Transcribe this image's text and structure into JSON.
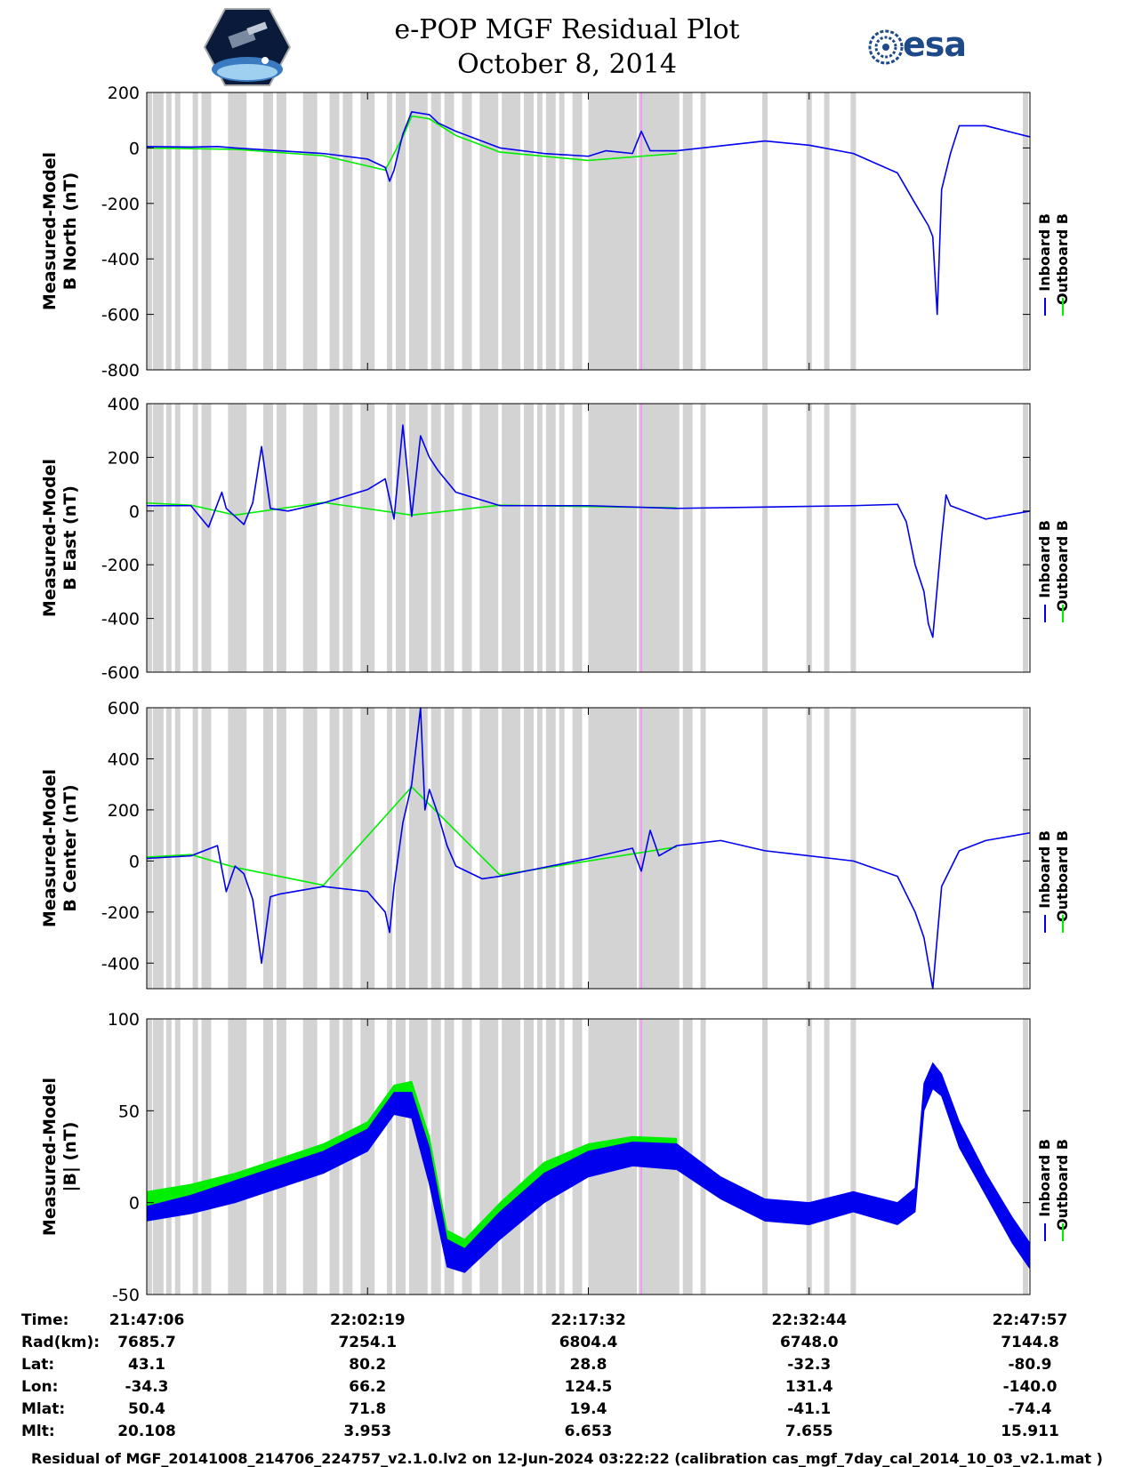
{
  "title": {
    "line1": "e-POP MGF Residual Plot",
    "line2": "October 8, 2014"
  },
  "logos": {
    "left": "cassiope-mission-logo",
    "right_text": "esa"
  },
  "colors": {
    "inboard": "#0000ee",
    "outboard": "#00ee00",
    "gap": "#d3d3d3",
    "marker": "#ff88ff"
  },
  "legend": {
    "inboard": "Inboard B",
    "outboard": "Outboard B"
  },
  "chart_data": [
    {
      "type": "line",
      "ylabel": [
        "Measured-Model",
        "B North (nT)"
      ],
      "ylim": [
        -800,
        200
      ],
      "yticks": [
        200,
        0,
        -200,
        -400,
        -600,
        -800
      ],
      "series": [
        {
          "name": "Inboard B",
          "color": "#0000ee",
          "points": [
            [
              0,
              5
            ],
            [
              0.05,
              3
            ],
            [
              0.08,
              5
            ],
            [
              0.1,
              0
            ],
            [
              0.15,
              -10
            ],
            [
              0.2,
              -20
            ],
            [
              0.25,
              -40
            ],
            [
              0.27,
              -70
            ],
            [
              0.275,
              -120
            ],
            [
              0.28,
              -80
            ],
            [
              0.29,
              50
            ],
            [
              0.3,
              130
            ],
            [
              0.32,
              120
            ],
            [
              0.33,
              90
            ],
            [
              0.35,
              60
            ],
            [
              0.4,
              0
            ],
            [
              0.45,
              -20
            ],
            [
              0.5,
              -30
            ],
            [
              0.52,
              -10
            ],
            [
              0.55,
              -20
            ],
            [
              0.56,
              60
            ],
            [
              0.57,
              -10
            ],
            [
              0.6,
              -10
            ],
            [
              0.7,
              25
            ],
            [
              0.75,
              10
            ],
            [
              0.8,
              -20
            ],
            [
              0.85,
              -90
            ],
            [
              0.87,
              -200
            ],
            [
              0.885,
              -280
            ],
            [
              0.89,
              -320
            ],
            [
              0.895,
              -600
            ],
            [
              0.9,
              -150
            ],
            [
              0.91,
              -20
            ],
            [
              0.92,
              80
            ],
            [
              0.95,
              80
            ],
            [
              1.0,
              40
            ]
          ]
        },
        {
          "name": "Outboard B",
          "color": "#00ee00",
          "points": [
            [
              0,
              0
            ],
            [
              0.1,
              -5
            ],
            [
              0.2,
              -28
            ],
            [
              0.27,
              -80
            ],
            [
              0.29,
              40
            ],
            [
              0.3,
              115
            ],
            [
              0.32,
              105
            ],
            [
              0.35,
              45
            ],
            [
              0.4,
              -15
            ],
            [
              0.5,
              -45
            ],
            [
              0.56,
              -30
            ],
            [
              0.6,
              -20
            ]
          ]
        }
      ]
    },
    {
      "type": "line",
      "ylabel": [
        "Measured-Model",
        "B East (nT)"
      ],
      "ylim": [
        -600,
        400
      ],
      "yticks": [
        400,
        200,
        0,
        -200,
        -400,
        -600
      ],
      "series": [
        {
          "name": "Inboard B",
          "color": "#0000ee",
          "points": [
            [
              0,
              20
            ],
            [
              0.05,
              20
            ],
            [
              0.07,
              -60
            ],
            [
              0.085,
              70
            ],
            [
              0.09,
              10
            ],
            [
              0.1,
              -20
            ],
            [
              0.11,
              -50
            ],
            [
              0.12,
              30
            ],
            [
              0.13,
              240
            ],
            [
              0.14,
              10
            ],
            [
              0.16,
              0
            ],
            [
              0.2,
              30
            ],
            [
              0.25,
              80
            ],
            [
              0.27,
              120
            ],
            [
              0.28,
              -30
            ],
            [
              0.29,
              320
            ],
            [
              0.3,
              -20
            ],
            [
              0.31,
              280
            ],
            [
              0.32,
              200
            ],
            [
              0.33,
              150
            ],
            [
              0.35,
              70
            ],
            [
              0.4,
              20
            ],
            [
              0.5,
              20
            ],
            [
              0.6,
              10
            ],
            [
              0.7,
              15
            ],
            [
              0.8,
              20
            ],
            [
              0.85,
              25
            ],
            [
              0.86,
              -40
            ],
            [
              0.87,
              -200
            ],
            [
              0.88,
              -300
            ],
            [
              0.885,
              -420
            ],
            [
              0.89,
              -470
            ],
            [
              0.9,
              -100
            ],
            [
              0.905,
              60
            ],
            [
              0.91,
              20
            ],
            [
              0.95,
              -30
            ],
            [
              1.0,
              0
            ]
          ]
        },
        {
          "name": "Outboard B",
          "color": "#00ee00",
          "points": [
            [
              0,
              30
            ],
            [
              0.05,
              22
            ],
            [
              0.1,
              -15
            ],
            [
              0.2,
              32
            ],
            [
              0.3,
              -15
            ],
            [
              0.4,
              22
            ],
            [
              0.6,
              12
            ]
          ]
        }
      ]
    },
    {
      "type": "line",
      "ylabel": [
        "Measured-Model",
        "B Center (nT)"
      ],
      "ylim": [
        -500,
        600
      ],
      "yticks": [
        600,
        400,
        200,
        0,
        -200,
        -400
      ],
      "series": [
        {
          "name": "Inboard B",
          "color": "#0000ee",
          "points": [
            [
              0,
              10
            ],
            [
              0.05,
              20
            ],
            [
              0.08,
              60
            ],
            [
              0.09,
              -120
            ],
            [
              0.1,
              -20
            ],
            [
              0.11,
              -50
            ],
            [
              0.12,
              -150
            ],
            [
              0.13,
              -400
            ],
            [
              0.14,
              -140
            ],
            [
              0.15,
              -130
            ],
            [
              0.2,
              -100
            ],
            [
              0.25,
              -120
            ],
            [
              0.27,
              -200
            ],
            [
              0.275,
              -280
            ],
            [
              0.28,
              -100
            ],
            [
              0.29,
              150
            ],
            [
              0.3,
              300
            ],
            [
              0.31,
              600
            ],
            [
              0.315,
              200
            ],
            [
              0.32,
              280
            ],
            [
              0.33,
              180
            ],
            [
              0.34,
              60
            ],
            [
              0.35,
              -20
            ],
            [
              0.38,
              -70
            ],
            [
              0.4,
              -60
            ],
            [
              0.5,
              10
            ],
            [
              0.55,
              50
            ],
            [
              0.56,
              -40
            ],
            [
              0.57,
              120
            ],
            [
              0.58,
              20
            ],
            [
              0.6,
              60
            ],
            [
              0.65,
              80
            ],
            [
              0.7,
              40
            ],
            [
              0.8,
              0
            ],
            [
              0.85,
              -60
            ],
            [
              0.87,
              -200
            ],
            [
              0.88,
              -300
            ],
            [
              0.89,
              -500
            ],
            [
              0.9,
              -100
            ],
            [
              0.92,
              40
            ],
            [
              0.95,
              80
            ],
            [
              1.0,
              110
            ]
          ]
        },
        {
          "name": "Outboard B",
          "color": "#00ee00",
          "points": [
            [
              0,
              15
            ],
            [
              0.05,
              25
            ],
            [
              0.1,
              -25
            ],
            [
              0.2,
              -95
            ],
            [
              0.3,
              290
            ],
            [
              0.4,
              -55
            ],
            [
              0.6,
              55
            ]
          ]
        }
      ]
    },
    {
      "type": "area",
      "ylabel": [
        "Measured-Model",
        "|B| (nT)"
      ],
      "ylim": [
        -50,
        100
      ],
      "yticks": [
        100,
        50,
        0,
        -50
      ],
      "series": [
        {
          "name": "Inboard B",
          "color": "#0000ee",
          "band": [
            [
              0,
              -10,
              -2
            ],
            [
              0.05,
              -6,
              4
            ],
            [
              0.1,
              0,
              12
            ],
            [
              0.15,
              8,
              20
            ],
            [
              0.2,
              16,
              28
            ],
            [
              0.25,
              28,
              40
            ],
            [
              0.28,
              48,
              60
            ],
            [
              0.3,
              46,
              60
            ],
            [
              0.32,
              10,
              30
            ],
            [
              0.34,
              -35,
              -20
            ],
            [
              0.36,
              -38,
              -25
            ],
            [
              0.4,
              -20,
              -5
            ],
            [
              0.45,
              0,
              16
            ],
            [
              0.5,
              14,
              28
            ],
            [
              0.55,
              20,
              33
            ],
            [
              0.6,
              18,
              32
            ],
            [
              0.65,
              2,
              14
            ],
            [
              0.7,
              -10,
              2
            ],
            [
              0.75,
              -12,
              0
            ],
            [
              0.8,
              -5,
              6
            ],
            [
              0.85,
              -12,
              0
            ],
            [
              0.87,
              -5,
              8
            ],
            [
              0.88,
              50,
              65
            ],
            [
              0.89,
              62,
              76
            ],
            [
              0.9,
              58,
              70
            ],
            [
              0.92,
              30,
              44
            ],
            [
              0.95,
              4,
              16
            ],
            [
              0.98,
              -22,
              -8
            ],
            [
              1.0,
              -36,
              -22
            ]
          ]
        },
        {
          "name": "Outboard B",
          "color": "#00ee00",
          "band": [
            [
              0,
              -8,
              6
            ],
            [
              0.05,
              -2,
              10
            ],
            [
              0.1,
              4,
              16
            ],
            [
              0.15,
              12,
              24
            ],
            [
              0.2,
              20,
              32
            ],
            [
              0.25,
              32,
              44
            ],
            [
              0.28,
              52,
              64
            ],
            [
              0.3,
              52,
              66
            ],
            [
              0.32,
              18,
              36
            ],
            [
              0.34,
              -30,
              -15
            ],
            [
              0.36,
              -33,
              -20
            ],
            [
              0.4,
              -14,
              0
            ],
            [
              0.45,
              6,
              22
            ],
            [
              0.5,
              18,
              32
            ],
            [
              0.55,
              24,
              36
            ],
            [
              0.6,
              22,
              35
            ]
          ]
        }
      ]
    }
  ],
  "xticks": [
    "21:47:06",
    "22:02:19",
    "22:17:32",
    "22:32:44",
    "22:47:57"
  ],
  "ephemeris": {
    "rows": [
      {
        "label": "Time:",
        "values": [
          "21:47:06",
          "22:02:19",
          "22:17:32",
          "22:32:44",
          "22:47:57"
        ]
      },
      {
        "label": "Rad(km):",
        "values": [
          "7685.7",
          "7254.1",
          "6804.4",
          "6748.0",
          "7144.8"
        ]
      },
      {
        "label": "Lat:",
        "values": [
          "43.1",
          "80.2",
          "28.8",
          "-32.3",
          "-80.9"
        ]
      },
      {
        "label": "Lon:",
        "values": [
          "-34.3",
          "66.2",
          "124.5",
          "131.4",
          "-140.0"
        ]
      },
      {
        "label": "Mlat:",
        "values": [
          "50.4",
          "71.8",
          "19.4",
          "-41.1",
          "-74.4"
        ]
      },
      {
        "label": "Mlt:",
        "values": [
          "20.108",
          "3.953",
          "6.653",
          "7.655",
          "15.911"
        ]
      }
    ]
  },
  "footer": "Residual of MGF_20141008_214706_224757_v2.1.0.lv2 on 12-Jun-2024 03:22:22 (calibration cas_mgf_7day_cal_2014_10_03_v2.1.mat )"
}
